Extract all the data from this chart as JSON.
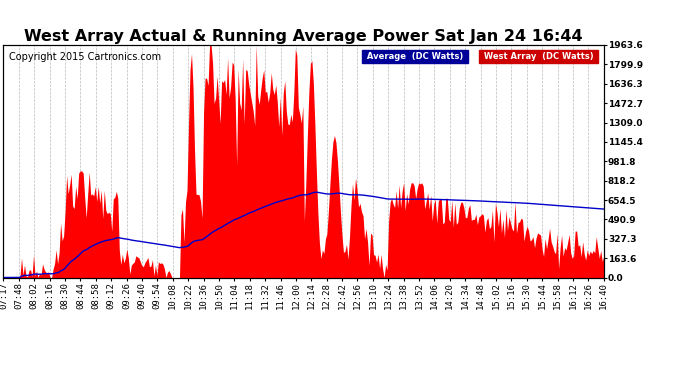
{
  "title": "West Array Actual & Running Average Power Sat Jan 24 16:44",
  "copyright": "Copyright 2015 Cartronics.com",
  "yticks": [
    0.0,
    163.6,
    327.3,
    490.9,
    654.5,
    818.2,
    981.8,
    1145.4,
    1309.0,
    1472.7,
    1636.3,
    1799.9,
    1963.6
  ],
  "ymax": 1963.6,
  "legend_label_avg": "Average  (DC Watts)",
  "legend_label_west": "West Array  (DC Watts)",
  "bg_color": "#ffffff",
  "grid_color": "#bbbbbb",
  "fill_color": "#ff0000",
  "line_color": "#0000cc",
  "title_fontsize": 11.5,
  "copyright_fontsize": 7,
  "tick_fontsize": 6.5,
  "xtick_labels": [
    "07:17",
    "07:48",
    "08:02",
    "08:16",
    "08:30",
    "08:44",
    "08:58",
    "09:12",
    "09:26",
    "09:40",
    "09:54",
    "10:08",
    "10:22",
    "10:36",
    "10:50",
    "11:04",
    "11:18",
    "11:32",
    "11:46",
    "12:00",
    "12:14",
    "12:28",
    "12:42",
    "12:56",
    "13:10",
    "13:24",
    "13:38",
    "13:52",
    "14:06",
    "14:20",
    "14:34",
    "14:48",
    "15:02",
    "15:16",
    "15:30",
    "15:44",
    "15:58",
    "16:12",
    "16:26",
    "16:40"
  ]
}
